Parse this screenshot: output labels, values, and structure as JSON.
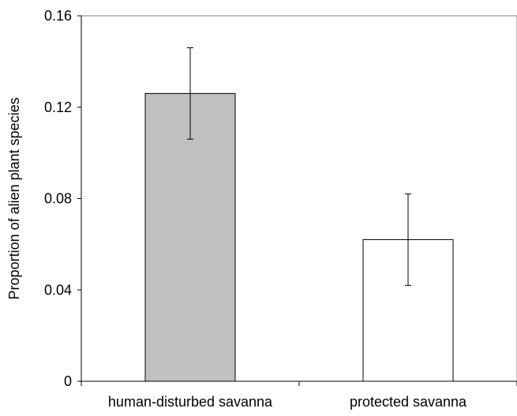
{
  "chart_data": {
    "type": "bar",
    "title": "",
    "xlabel": "",
    "ylabel": "Proportion of alien plant species",
    "categories": [
      "human-disturbed savanna",
      "protected savanna"
    ],
    "values": [
      0.126,
      0.062
    ],
    "error_bars": [
      {
        "low": 0.106,
        "high": 0.146
      },
      {
        "low": 0.042,
        "high": 0.082
      }
    ],
    "bar_colors": [
      "#c0c0c0",
      "#ffffff"
    ],
    "ylim": [
      0,
      0.16
    ],
    "yticks": [
      0,
      0.04,
      0.08,
      0.12,
      0.16
    ],
    "ytick_labels": [
      "0",
      "0.04",
      "0.08",
      "0.12",
      "0.16"
    ],
    "grid": false,
    "legend": "none"
  }
}
